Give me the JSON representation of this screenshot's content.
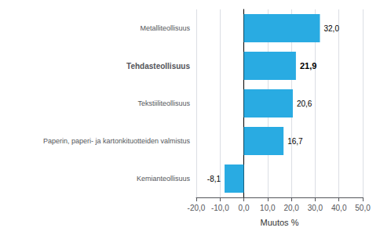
{
  "chart_data": {
    "type": "bar",
    "orientation": "horizontal",
    "categories": [
      "Kemianteollisuus",
      "Paperin, paperi- ja kartonkituotteiden valmistus",
      "Tekstiiliteollisuus",
      "Tehdasteollisuus",
      "Metalliteollisuus"
    ],
    "values": [
      -8.1,
      16.7,
      20.6,
      21.9,
      32.0
    ],
    "value_labels": [
      "-8,1",
      "16,7",
      "20,6",
      "21,9",
      "32,0"
    ],
    "data_labels": true,
    "color": "#29ABE2",
    "xlabel": "Muutos %",
    "xlim": [
      -20.0,
      50.0
    ],
    "xticks": [
      {
        "value": -20.0,
        "label": "-20,0"
      },
      {
        "value": -10.0,
        "label": "-10,0"
      },
      {
        "value": 0.0,
        "label": "0,0"
      },
      {
        "value": 10.0,
        "label": "10,0"
      },
      {
        "value": 20.0,
        "label": "20,0"
      },
      {
        "value": 30.0,
        "label": "30,0"
      },
      {
        "value": 40.0,
        "label": "40,0"
      },
      {
        "value": 50.0,
        "label": "50,0"
      }
    ],
    "grid": true
  }
}
